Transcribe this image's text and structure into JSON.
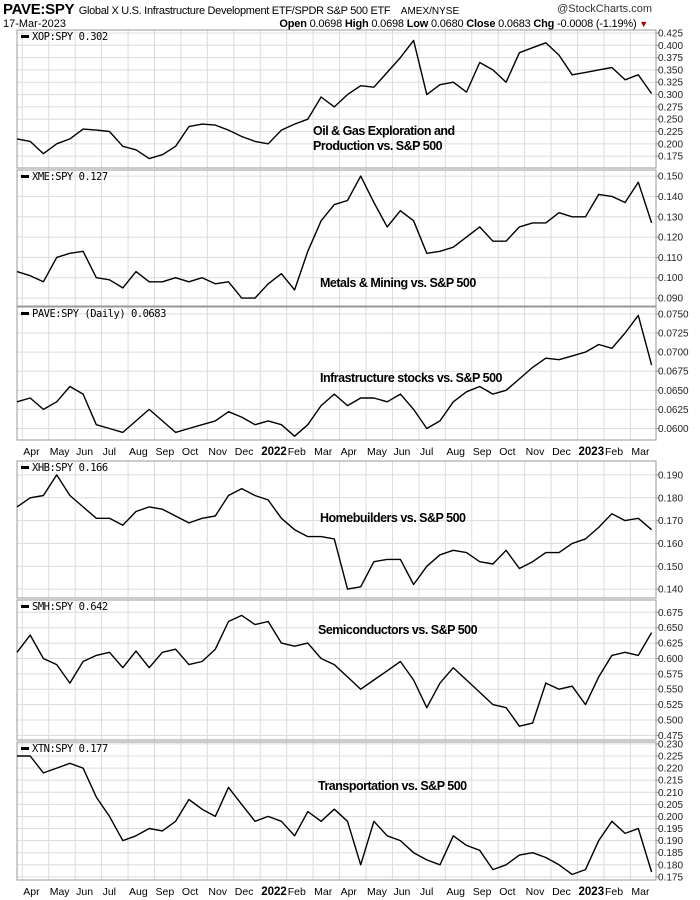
{
  "header": {
    "symbol": "PAVE:SPY",
    "description": "Global X U.S. Infrastructure Development ETF/SPDR S&P 500 ETF",
    "exchange": "AMEX/NYSE",
    "brand": "@StockCharts.com",
    "date": "17-Mar-2023",
    "open_label": "Open",
    "open": "0.0698",
    "high_label": "High",
    "high": "0.0698",
    "low_label": "Low",
    "low": "0.0680",
    "close_label": "Close",
    "close": "0.0683",
    "chg_label": "Chg",
    "chg": "-0.0008 (-1.19%)",
    "chg_arrow": "▼"
  },
  "x_axis": {
    "months": [
      "Apr",
      "May",
      "Jun",
      "Jul",
      "Aug",
      "Sep",
      "Oct",
      "Nov",
      "Dec",
      "2022",
      "Feb",
      "Mar",
      "Apr",
      "May",
      "Jun",
      "Jul",
      "Aug",
      "Sep",
      "Oct",
      "Nov",
      "Dec",
      "2023",
      "Feb",
      "Mar"
    ],
    "years": [
      "2022",
      "2023"
    ],
    "x_unit": "months since mid-Mar 2021, step 0.5"
  },
  "chart_data": [
    {
      "type": "line",
      "name": "XOP:SPY",
      "legend": "XOP:SPY 0.302",
      "annotation": [
        "Oil & Gas Exploration and",
        "Production vs. S&P 500"
      ],
      "ylim": [
        0.151,
        0.431
      ],
      "yticks": [
        "0.425",
        "0.400",
        "0.375",
        "0.350",
        "0.325",
        "0.300",
        "0.275",
        "0.250",
        "0.225",
        "0.200",
        "0.175"
      ],
      "values": [
        0.21,
        0.205,
        0.18,
        0.2,
        0.21,
        0.23,
        0.228,
        0.225,
        0.195,
        0.188,
        0.17,
        0.178,
        0.195,
        0.235,
        0.24,
        0.238,
        0.228,
        0.215,
        0.205,
        0.2,
        0.228,
        0.24,
        0.25,
        0.295,
        0.275,
        0.3,
        0.318,
        0.315,
        0.345,
        0.375,
        0.41,
        0.3,
        0.32,
        0.325,
        0.305,
        0.365,
        0.35,
        0.325,
        0.385,
        0.395,
        0.405,
        0.38,
        0.34,
        0.345,
        0.35,
        0.355,
        0.33,
        0.34,
        0.302
      ]
    },
    {
      "type": "line",
      "name": "XME:SPY",
      "legend": "XME:SPY 0.127",
      "annotation": [
        "Metals & Mining vs. S&P 500"
      ],
      "ylim": [
        0.0861,
        0.153
      ],
      "yticks": [
        "0.150",
        "0.140",
        "0.130",
        "0.120",
        "0.110",
        "0.100",
        "0.090"
      ],
      "values": [
        0.103,
        0.101,
        0.098,
        0.11,
        0.112,
        0.113,
        0.1,
        0.099,
        0.095,
        0.103,
        0.098,
        0.098,
        0.1,
        0.098,
        0.1,
        0.097,
        0.098,
        0.09,
        0.09,
        0.097,
        0.102,
        0.094,
        0.113,
        0.128,
        0.136,
        0.138,
        0.15,
        0.137,
        0.125,
        0.133,
        0.128,
        0.112,
        0.113,
        0.115,
        0.12,
        0.125,
        0.118,
        0.118,
        0.125,
        0.127,
        0.127,
        0.132,
        0.13,
        0.13,
        0.141,
        0.14,
        0.137,
        0.147,
        0.127
      ]
    },
    {
      "type": "line",
      "name": "PAVE:SPY",
      "legend": "PAVE:SPY (Daily) 0.0683",
      "annotation": [
        "Infrastructure stocks vs. S&P 500"
      ],
      "ylim": [
        0.0585,
        0.0759
      ],
      "yticks": [
        "0.0750",
        "0.0725",
        "0.0700",
        "0.0675",
        "0.0650",
        "0.0625",
        "0.0600"
      ],
      "values": [
        0.0635,
        0.064,
        0.0625,
        0.0635,
        0.0655,
        0.0645,
        0.0605,
        0.06,
        0.0595,
        0.061,
        0.0625,
        0.061,
        0.0595,
        0.06,
        0.0605,
        0.061,
        0.0622,
        0.0615,
        0.0605,
        0.061,
        0.0605,
        0.059,
        0.0605,
        0.063,
        0.0645,
        0.063,
        0.064,
        0.064,
        0.0635,
        0.0645,
        0.0625,
        0.06,
        0.061,
        0.0635,
        0.0648,
        0.0655,
        0.0645,
        0.065,
        0.0665,
        0.068,
        0.0692,
        0.069,
        0.0695,
        0.07,
        0.071,
        0.0705,
        0.0725,
        0.0748,
        0.0683
      ]
    },
    {
      "type": "line",
      "name": "XHB:SPY",
      "legend": "XHB:SPY 0.166",
      "annotation": [
        "Homebuilders vs. S&P 500"
      ],
      "ylim": [
        0.1361,
        0.1961
      ],
      "yticks": [
        "0.190",
        "0.180",
        "0.170",
        "0.160",
        "0.150",
        "0.140"
      ],
      "values": [
        0.176,
        0.18,
        0.181,
        0.19,
        0.181,
        0.176,
        0.171,
        0.171,
        0.168,
        0.174,
        0.176,
        0.175,
        0.172,
        0.169,
        0.171,
        0.172,
        0.181,
        0.184,
        0.181,
        0.179,
        0.171,
        0.166,
        0.163,
        0.163,
        0.162,
        0.14,
        0.141,
        0.152,
        0.153,
        0.153,
        0.142,
        0.15,
        0.155,
        0.157,
        0.156,
        0.152,
        0.151,
        0.157,
        0.149,
        0.152,
        0.156,
        0.156,
        0.16,
        0.162,
        0.167,
        0.173,
        0.17,
        0.171,
        0.166
      ]
    },
    {
      "type": "line",
      "name": "SMH:SPY",
      "legend": "SMH:SPY 0.642",
      "annotation": [
        "Semiconductors vs. S&P 500"
      ],
      "ylim": [
        0.4675,
        0.695
      ],
      "yticks": [
        "0.675",
        "0.650",
        "0.625",
        "0.600",
        "0.575",
        "0.550",
        "0.525",
        "0.500",
        "0.475"
      ],
      "values": [
        0.61,
        0.638,
        0.6,
        0.59,
        0.56,
        0.595,
        0.605,
        0.61,
        0.585,
        0.612,
        0.585,
        0.61,
        0.615,
        0.59,
        0.595,
        0.615,
        0.66,
        0.67,
        0.655,
        0.66,
        0.625,
        0.62,
        0.625,
        0.6,
        0.59,
        0.57,
        0.55,
        0.565,
        0.58,
        0.595,
        0.565,
        0.52,
        0.56,
        0.585,
        0.565,
        0.545,
        0.525,
        0.52,
        0.49,
        0.495,
        0.56,
        0.55,
        0.555,
        0.525,
        0.57,
        0.605,
        0.61,
        0.605,
        0.642
      ]
    },
    {
      "type": "line",
      "name": "XTN:SPY",
      "legend": "XTN:SPY 0.177",
      "annotation": [
        "Transportation vs. S&P 500"
      ],
      "ylim": [
        0.1737,
        0.2308
      ],
      "yticks": [
        "0.230",
        "0.225",
        "0.220",
        "0.215",
        "0.210",
        "0.205",
        "0.200",
        "0.195",
        "0.190",
        "0.185",
        "0.180",
        "0.175"
      ],
      "values": [
        0.225,
        0.225,
        0.218,
        0.22,
        0.222,
        0.22,
        0.208,
        0.2,
        0.19,
        0.192,
        0.195,
        0.194,
        0.198,
        0.207,
        0.203,
        0.2,
        0.212,
        0.205,
        0.198,
        0.2,
        0.198,
        0.192,
        0.202,
        0.198,
        0.203,
        0.198,
        0.18,
        0.198,
        0.192,
        0.19,
        0.185,
        0.182,
        0.18,
        0.192,
        0.188,
        0.186,
        0.178,
        0.18,
        0.184,
        0.185,
        0.183,
        0.18,
        0.176,
        0.178,
        0.19,
        0.198,
        0.193,
        0.195,
        0.177
      ]
    }
  ]
}
